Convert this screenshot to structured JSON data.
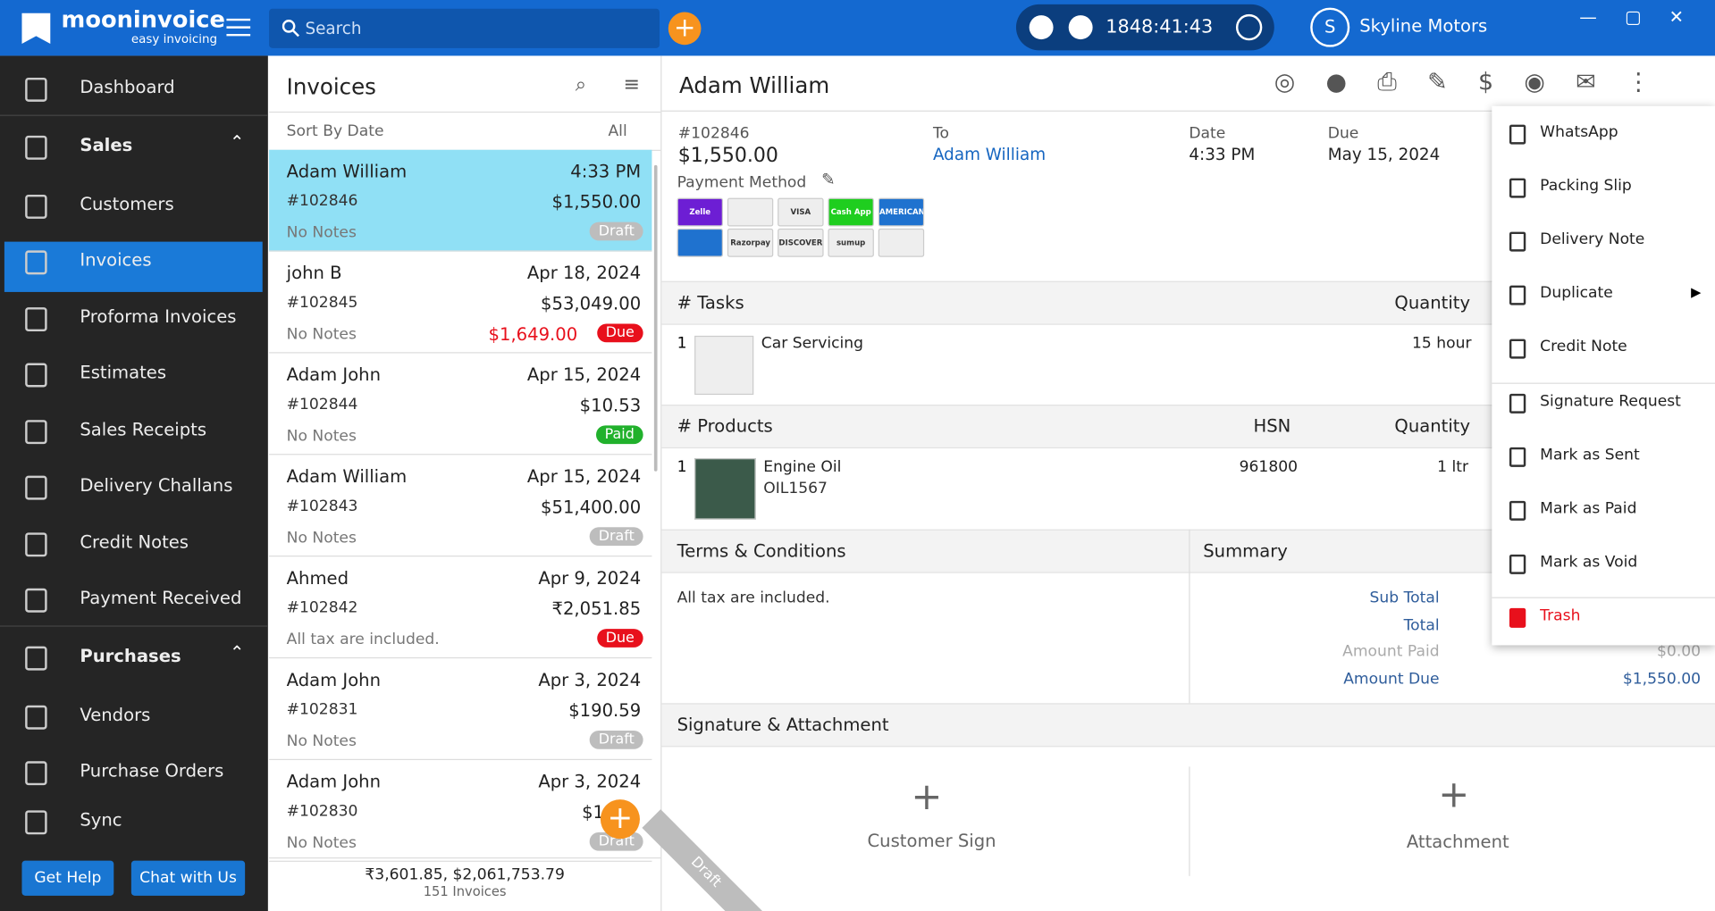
{
  "app": {
    "brand": "mooninvoice",
    "tagline": "easy invoicing",
    "search_placeholder": "Search",
    "timer": "1848:41:43",
    "account_initial": "S",
    "account": "Skyline Motors"
  },
  "sidebar": {
    "items": [
      {
        "label": "Dashboard"
      },
      {
        "label": "Sales",
        "section": true
      },
      {
        "label": "Customers"
      },
      {
        "label": "Invoices",
        "active": true
      },
      {
        "label": "Proforma Invoices"
      },
      {
        "label": "Estimates"
      },
      {
        "label": "Sales Receipts"
      },
      {
        "label": "Delivery Challans"
      },
      {
        "label": "Credit Notes"
      },
      {
        "label": "Payment Received"
      },
      {
        "label": "Purchases",
        "section": true
      },
      {
        "label": "Vendors"
      },
      {
        "label": "Purchase Orders"
      },
      {
        "label": "Sync"
      }
    ],
    "get_help": "Get Help",
    "chat": "Chat with Us"
  },
  "list": {
    "title": "Invoices",
    "sort": "Sort By Date",
    "filter": "All",
    "invoices": [
      {
        "name": "Adam William",
        "date": "4:33 PM",
        "number": "#102846",
        "amount": "$1,550.00",
        "notes": "No Notes",
        "status": "Draft",
        "selected": true
      },
      {
        "name": "john B",
        "date": "Apr 18, 2024",
        "number": "#102845",
        "amount": "$53,049.00",
        "notes": "No Notes",
        "due_amount": "$1,649.00",
        "status": "Due"
      },
      {
        "name": "Adam John",
        "date": "Apr 15, 2024",
        "number": "#102844",
        "amount": "$10.53",
        "notes": "No Notes",
        "status": "Paid"
      },
      {
        "name": "Adam William",
        "date": "Apr 15, 2024",
        "number": "#102843",
        "amount": "$51,400.00",
        "notes": "No Notes",
        "status": "Draft"
      },
      {
        "name": "Ahmed",
        "date": "Apr 9, 2024",
        "number": "#102842",
        "amount": "₹2,051.85",
        "notes": "All tax are included.",
        "status": "Due"
      },
      {
        "name": "Adam John",
        "date": "Apr 3, 2024",
        "number": "#102831",
        "amount": "$190.59",
        "notes": "No Notes",
        "status": "Draft"
      },
      {
        "name": "Adam John",
        "date": "Apr 3, 2024",
        "number": "#102830",
        "amount": "$1",
        "notes": "No Notes",
        "status": "Draft"
      }
    ],
    "footer_total": "₹3,601.85, $2,061,753.79",
    "footer_count": "151 Invoices"
  },
  "detail": {
    "name": "Adam William",
    "number": "#102846",
    "amount": "$1,550.00",
    "to_label": "To",
    "to": "Adam William",
    "date_label": "Date",
    "date": "4:33 PM",
    "due_label": "Due",
    "due": "May 15, 2024",
    "payment_method": "Payment Method",
    "payment_logos": [
      "Zelle",
      "",
      "VISA",
      "Cash App",
      "AMERICAN EXPRESS",
      "",
      "Razorpay",
      "DISCOVER",
      "sumup",
      ""
    ],
    "tasks": {
      "header": "# Tasks",
      "quantity": "Quantity",
      "rows": [
        {
          "index": "1",
          "name": "Car Servicing",
          "quantity": "15 hour"
        }
      ]
    },
    "products": {
      "header": "# Products",
      "hsn": "HSN",
      "quantity": "Quantity",
      "rows": [
        {
          "index": "1",
          "name": "Engine Oil",
          "code": "OIL1567",
          "hsn": "961800",
          "quantity": "1 ltr"
        }
      ]
    },
    "terms": {
      "header": "Terms & Conditions",
      "text": "All tax are included."
    },
    "summary": {
      "header": "Summary",
      "rows": [
        {
          "label": "Sub Total",
          "value": ""
        },
        {
          "label": "Total",
          "value": ""
        },
        {
          "label": "Amount Paid",
          "value": "$0.00"
        },
        {
          "label": "Amount Due",
          "value": "$1,550.00"
        }
      ]
    },
    "signature": {
      "header": "Signature & Attachment",
      "sign": "Customer Sign",
      "attachment": "Attachment"
    },
    "ribbon": "Draft"
  },
  "menu": {
    "items": [
      "WhatsApp",
      "Packing Slip",
      "Delivery Note",
      "Duplicate",
      "Credit Note",
      "Signature Request",
      "Mark as Sent",
      "Mark as Paid",
      "Mark as Void",
      "Trash"
    ]
  }
}
